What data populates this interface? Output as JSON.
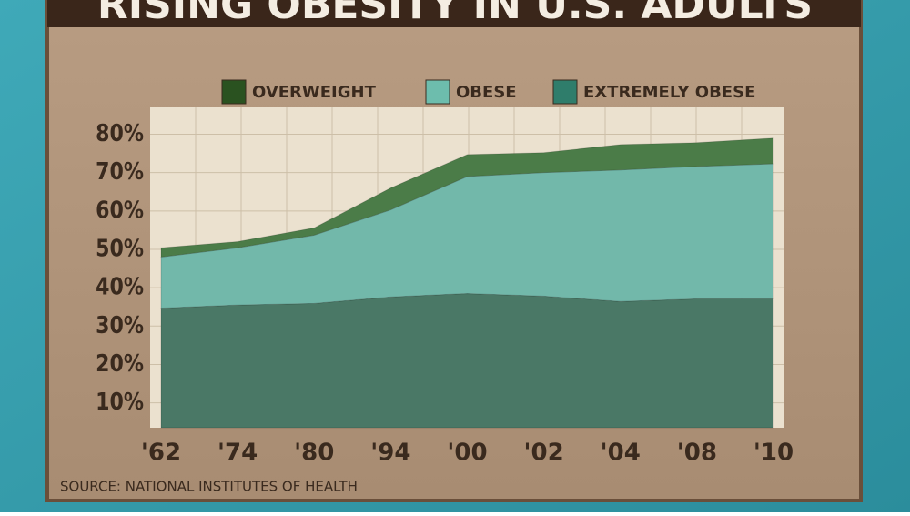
{
  "chart_data": {
    "type": "stacked-area",
    "title": "RISING OBESITY IN U.S. ADULTS",
    "source": "SOURCE: NATIONAL INSTITUTES OF HEALTH",
    "categories": [
      "'62",
      "'74",
      "'80",
      "'94",
      "'00",
      "'02",
      "'04",
      "'08",
      "'10"
    ],
    "series": [
      {
        "name": "OVERWEIGHT",
        "color": "#4b7c48",
        "legend_color": "#2a5220",
        "values": [
          2.4,
          1.6,
          1.9,
          5.7,
          5.7,
          5.2,
          6.6,
          6.2,
          6.7
        ]
      },
      {
        "name": "OBESE",
        "color": "#72b8aa",
        "legend_color": "#6dbdad",
        "values": [
          13.3,
          14.9,
          17.8,
          22.7,
          30.5,
          32.2,
          34.3,
          34.5,
          35.2
        ]
      },
      {
        "name": "EXTREMELY OBESE",
        "color": "#4a7866",
        "legend_color": "#2f7d6b",
        "values": [
          34.7,
          35.5,
          35.9,
          37.6,
          38.5,
          37.8,
          36.4,
          37.1,
          37.1
        ]
      }
    ],
    "ylim": [
      3.5,
      87
    ],
    "yticks": [
      {
        "value": 10,
        "label": "10%"
      },
      {
        "value": 20,
        "label": "20%"
      },
      {
        "value": 30,
        "label": "30%"
      },
      {
        "value": 40,
        "label": "40%"
      },
      {
        "value": 50,
        "label": "50%"
      },
      {
        "value": 60,
        "label": "60%"
      },
      {
        "value": 70,
        "label": "70%"
      },
      {
        "value": 80,
        "label": "80%"
      }
    ],
    "grid": true
  }
}
